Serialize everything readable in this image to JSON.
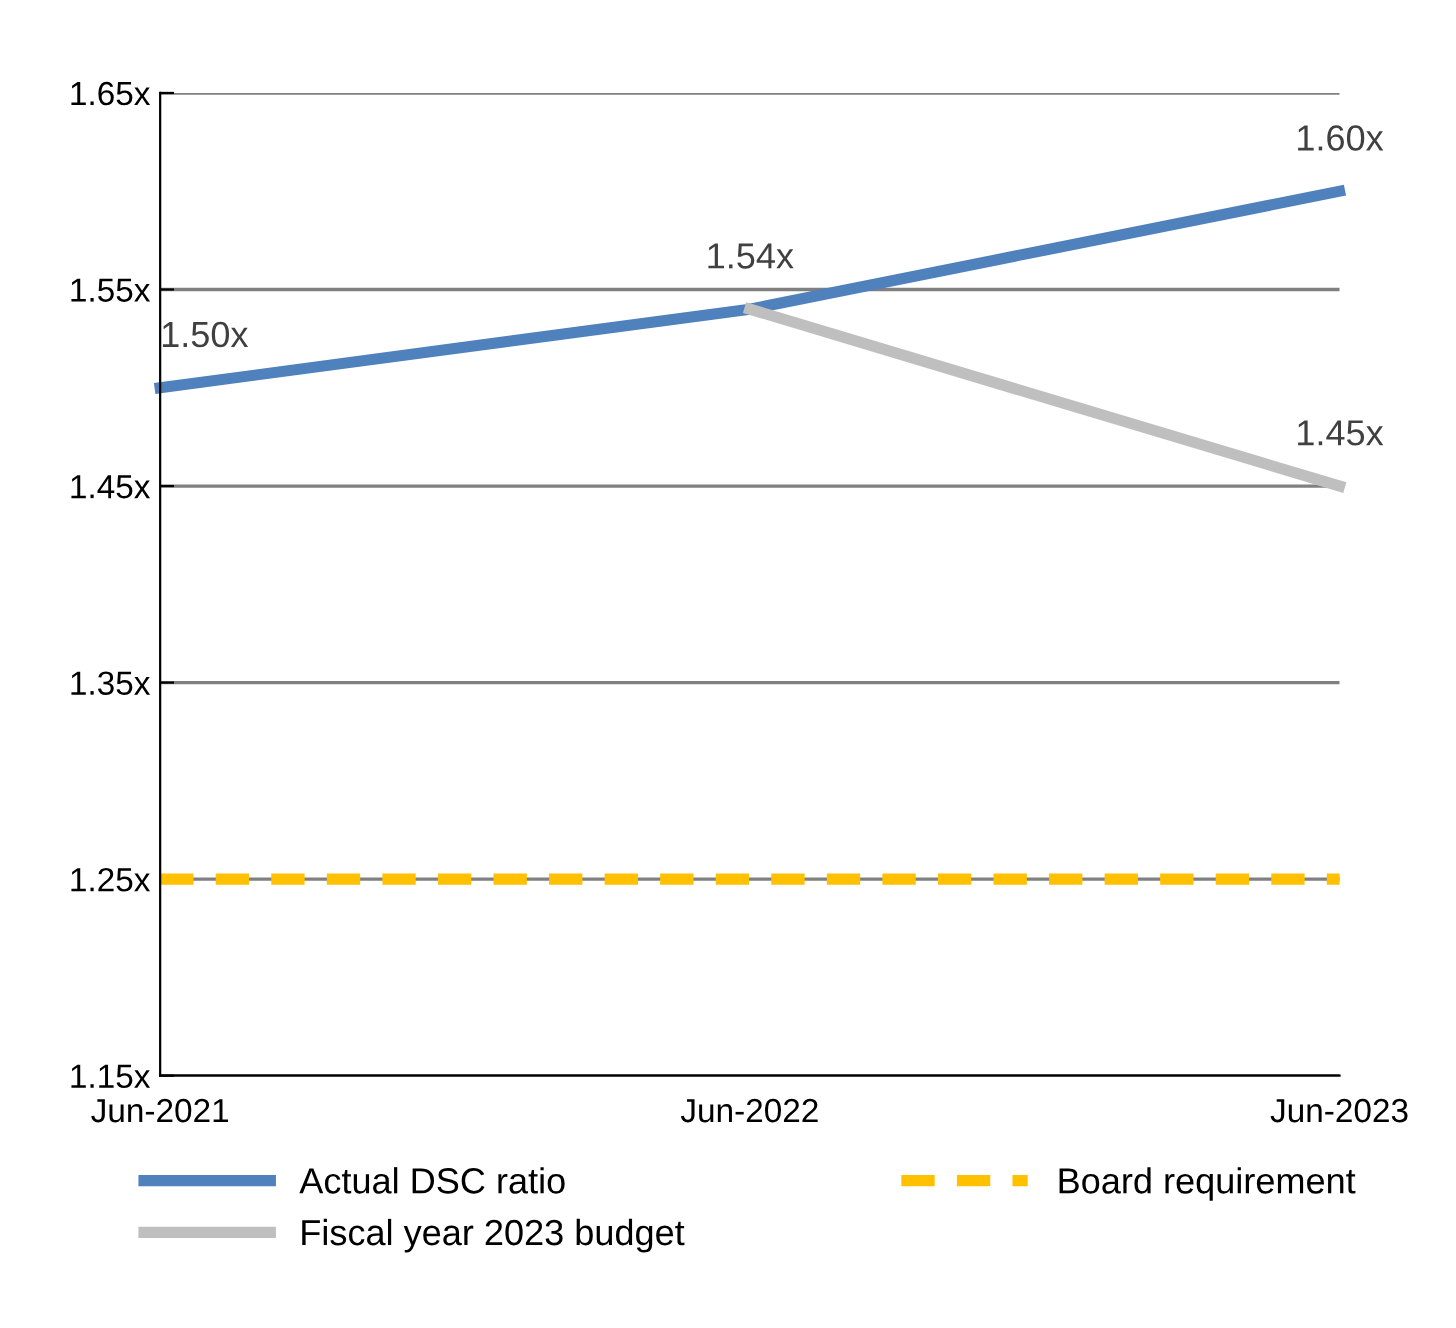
{
  "chart_data": {
    "type": "line",
    "categories": [
      "Jun-2021",
      "Jun-2022",
      "Jun-2023"
    ],
    "series": [
      {
        "name": "Actual DSC ratio",
        "color": "#4f81bd",
        "values": [
          1.5,
          1.54,
          1.6
        ],
        "value_labels": [
          "1.50x",
          "1.54x",
          "1.60x"
        ],
        "line_style": "solid"
      },
      {
        "name": "Fiscal year 2023 budget",
        "color": "#bfbfbf",
        "values": [
          null,
          1.54,
          1.45
        ],
        "value_labels": [
          null,
          null,
          "1.45x"
        ],
        "line_style": "solid"
      },
      {
        "name": "Board requirement",
        "color": "#ffc000",
        "values": [
          1.25,
          1.25,
          1.25
        ],
        "line_style": "dashed"
      }
    ],
    "ylim": [
      1.15,
      1.65
    ],
    "yticks": [
      {
        "value": 1.15,
        "label": "1.15x"
      },
      {
        "value": 1.25,
        "label": "1.25x"
      },
      {
        "value": 1.35,
        "label": "1.35x"
      },
      {
        "value": 1.45,
        "label": "1.45x"
      },
      {
        "value": 1.55,
        "label": "1.55x"
      },
      {
        "value": 1.65,
        "label": "1.65x"
      }
    ],
    "grid": "y",
    "legend": "bottom",
    "marker": "none"
  }
}
